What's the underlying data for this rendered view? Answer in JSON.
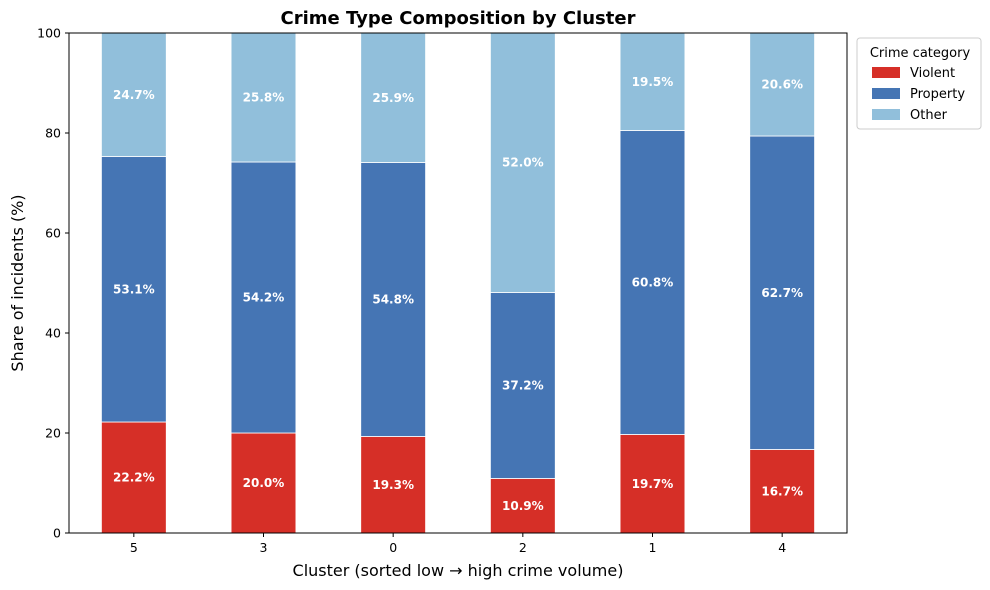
{
  "chart_data": {
    "type": "bar",
    "stacked": true,
    "title": "Crime Type Composition by Cluster",
    "xlabel": "Cluster  (sorted low → high crime volume)",
    "ylabel": "Share of incidents (%)",
    "ylim": [
      0,
      100
    ],
    "yticks": [
      0,
      20,
      40,
      60,
      80,
      100
    ],
    "grid": false,
    "categories": [
      "5",
      "3",
      "0",
      "2",
      "1",
      "4"
    ],
    "series": [
      {
        "name": "Violent",
        "color": "#d62f27",
        "values": [
          22.2,
          20.0,
          19.3,
          10.9,
          19.7,
          16.7
        ],
        "labels": [
          "22.2%",
          "20.0%",
          "19.3%",
          "10.9%",
          "19.7%",
          "16.7%"
        ]
      },
      {
        "name": "Property",
        "color": "#4575b4",
        "values": [
          53.1,
          54.2,
          54.8,
          37.2,
          60.8,
          62.7
        ],
        "labels": [
          "53.1%",
          "54.2%",
          "54.8%",
          "37.2%",
          "60.8%",
          "62.7%"
        ]
      },
      {
        "name": "Other",
        "color": "#91bfdb",
        "values": [
          24.7,
          25.8,
          25.9,
          52.0,
          19.5,
          20.6
        ],
        "labels": [
          "24.7%",
          "25.8%",
          "25.9%",
          "52.0%",
          "19.5%",
          "20.6%"
        ]
      }
    ],
    "legend": {
      "title": "Crime category",
      "placement": "outside-top-right"
    }
  }
}
